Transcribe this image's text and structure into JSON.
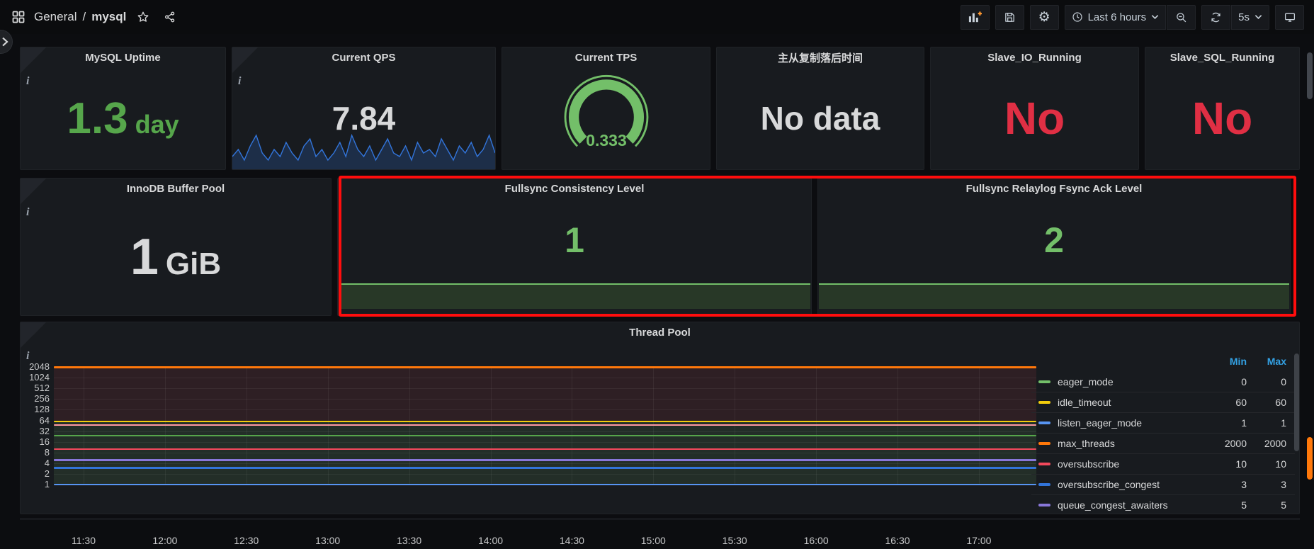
{
  "header": {
    "breadcrumb": {
      "section": "General",
      "separator": "/",
      "page": "mysql"
    },
    "icons": {
      "apps": "grid-icon",
      "favorite": "star-icon",
      "share": "share-alt-icon",
      "add_panel": "graph-plus-icon",
      "save": "floppy-icon",
      "settings": "gear-icon",
      "clock": "clock-icon",
      "zoom_out": "magnifier-minus-icon",
      "refresh": "sync-icon",
      "caret": "chevron-down-icon",
      "tv": "monitor-icon",
      "info": "info-corner-icon",
      "expand": "chevron-right-icon"
    },
    "settings_glyph": "⚙",
    "time_range": "Last 6 hours",
    "refresh_interval": "5s"
  },
  "row1": [
    {
      "title": "MySQL Uptime",
      "value": "1.3",
      "unit": "day",
      "value_color": "#56a64b",
      "has_info": true
    },
    {
      "title": "Current QPS",
      "value": "7.84",
      "value_color": "#d8d9da",
      "has_info": true,
      "sparkline_color": "#3274d9",
      "sparkline_fill": "rgba(50,116,217,0.22)",
      "sparkline": [
        3,
        5,
        2,
        6,
        9,
        4,
        2,
        5,
        3,
        7,
        4,
        2,
        6,
        8,
        3,
        5,
        2,
        4,
        7,
        3,
        9,
        5,
        3,
        6,
        2,
        5,
        8,
        4,
        3,
        6,
        2,
        7,
        4,
        5,
        3,
        8,
        5,
        2,
        6,
        4,
        7,
        3,
        5,
        9,
        4
      ]
    },
    {
      "title": "Current TPS",
      "value": "0.333",
      "value_color": "#73bf69",
      "gauge_color": "#73bf69"
    },
    {
      "title": "主从复制落后时间",
      "value": "No data",
      "value_color": "#d8d9da"
    },
    {
      "title": "Slave_IO_Running",
      "value": "No",
      "value_color": "#e02f44"
    },
    {
      "title": "Slave_SQL_Running",
      "value": "No",
      "value_color": "#e02f44"
    }
  ],
  "row2": [
    {
      "title": "InnoDB Buffer Pool",
      "value": "1",
      "unit": "GiB",
      "value_color": "#d8d9da",
      "has_info": true
    },
    {
      "title": "Fullsync Consistency Level",
      "value": "1",
      "value_color": "#73bf69",
      "line_color": "#73bf69"
    },
    {
      "title": "Fullsync Relaylog Fsync Ack Level",
      "value": "2",
      "value_color": "#73bf69",
      "line_color": "#73bf69"
    }
  ],
  "thread_pool": {
    "title": "Thread Pool",
    "has_info": true,
    "legend": {
      "columns": [
        "Min",
        "Max"
      ],
      "header_color": "#33a2e5",
      "rows": [
        {
          "name": "eager_mode",
          "color": "#73bf69",
          "min": "0",
          "max": "0"
        },
        {
          "name": "idle_timeout",
          "color": "#f2cc0c",
          "min": "60",
          "max": "60"
        },
        {
          "name": "listen_eager_mode",
          "color": "#5794f2",
          "min": "1",
          "max": "1"
        },
        {
          "name": "max_threads",
          "color": "#ff780a",
          "min": "2000",
          "max": "2000"
        },
        {
          "name": "oversubscribe",
          "color": "#f2495c",
          "min": "10",
          "max": "10"
        },
        {
          "name": "oversubscribe_congest",
          "color": "#3274d9",
          "min": "3",
          "max": "3"
        },
        {
          "name": "queue_congest_awaiters",
          "color": "#8877d9",
          "min": "5",
          "max": "5",
          "clipped": true
        }
      ]
    },
    "chart_data": {
      "type": "line",
      "y_scale": "log2",
      "ylim": [
        1,
        2048
      ],
      "y_ticks": [
        2048,
        1024,
        512,
        256,
        128,
        64,
        32,
        16,
        8,
        4,
        2,
        1
      ],
      "x_ticks": [
        "11:30",
        "12:00",
        "12:30",
        "13:00",
        "13:30",
        "14:00",
        "14:30",
        "15:00",
        "15:30",
        "16:00",
        "16:30",
        "17:00"
      ],
      "grid": true,
      "legend_position": "right-table",
      "series": [
        {
          "name": "max_threads",
          "color": "#ff780a",
          "value": 2000,
          "width": 3
        },
        {
          "name": "idle_timeout",
          "color": "#f2cc0c",
          "value": 60,
          "width": 2
        },
        {
          "name": "",
          "color": "#ff9aa2",
          "value": 48,
          "width": 2
        },
        {
          "name": "",
          "color": "#56a64b",
          "value": 24,
          "width": 2
        },
        {
          "name": "oversubscribe",
          "color": "#f2495c",
          "value": 10,
          "width": 2
        },
        {
          "name": "queue_congest_awaiters",
          "color": "#8877d9",
          "value": 5,
          "width": 3
        },
        {
          "name": "oversubscribe_congest",
          "color": "#3274d9",
          "value": 3,
          "width": 3
        },
        {
          "name": "listen_eager_mode",
          "color": "#5794f2",
          "value": 1,
          "width": 2
        }
      ],
      "fills": [
        {
          "from": 2000,
          "to": 60,
          "color": "rgba(242,73,92,0.10)"
        },
        {
          "from": 60,
          "to": 1,
          "color": "rgba(115,191,105,0.12)"
        }
      ]
    }
  },
  "overlay": {
    "type": "highlight-rectangle",
    "color": "#ff0d0d"
  },
  "scrollbar": {
    "thumb_color": "#42464d",
    "active_color": "#ff780a"
  }
}
